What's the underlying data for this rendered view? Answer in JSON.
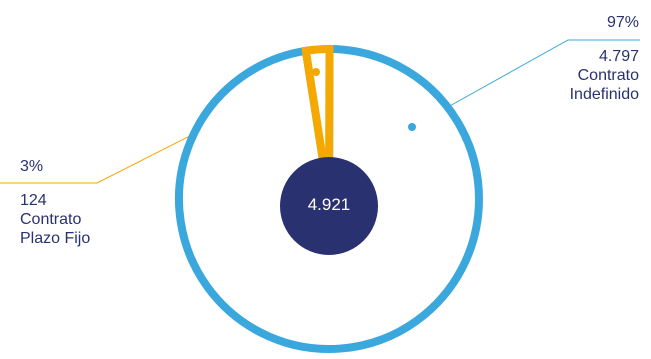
{
  "chart_data": {
    "type": "pie",
    "total": "4.921",
    "slices": [
      {
        "label_line1": "Contrato",
        "label_line2": "Indefinido",
        "count": "4.797",
        "value": 4797,
        "percent": "97%",
        "color": "#3aa7dd"
      },
      {
        "label_line1": "Contrato",
        "label_line2": "Plazo Fijo",
        "count": "124",
        "value": 124,
        "percent": "3%",
        "color": "#f4a800"
      }
    ],
    "center_color": "#2a3170"
  }
}
